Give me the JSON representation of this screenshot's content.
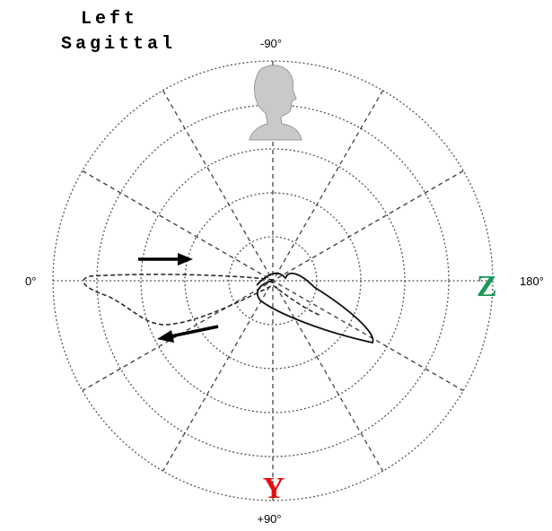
{
  "title": {
    "line1": "Left",
    "line2": "Sagittal"
  },
  "angle_labels": {
    "top": "-90°",
    "left": "0°",
    "right": "180°",
    "bottom": "+90°"
  },
  "axis_labels": {
    "z": "Z",
    "y": "Y"
  }
}
